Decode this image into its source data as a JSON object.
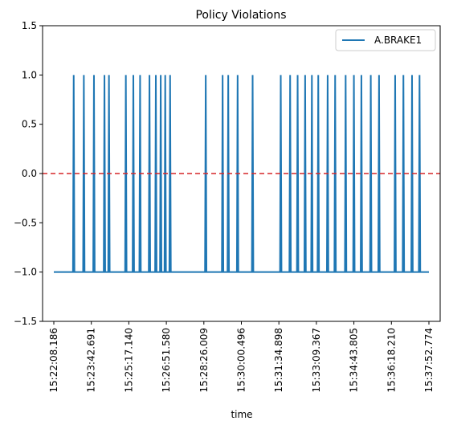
{
  "chart_data": {
    "type": "line",
    "title": "Policy Violations",
    "xlabel": "time",
    "ylabel": "",
    "ylim": [
      -1.5,
      1.5
    ],
    "yticks": [
      -1.5,
      -1.0,
      -0.5,
      0.0,
      0.5,
      1.0,
      1.5
    ],
    "ytick_labels": [
      "−1.5",
      "−1.0",
      "−0.5",
      "0.0",
      "0.5",
      "1.0",
      "1.5"
    ],
    "xtick_labels": [
      "15:22:08.186",
      "15:23:42.691",
      "15:25:17.140",
      "15:26:51.580",
      "15:28:26.009",
      "15:30:00.496",
      "15:31:34.898",
      "15:33:09.367",
      "15:34:43.805",
      "15:36:18.210",
      "15:37:52.774"
    ],
    "x_range_ticks": [
      -0.3,
      10.3
    ],
    "series": [
      {
        "name": "A.BRAKE1",
        "color": "#1f77b4",
        "baseline": -1.0,
        "spike_value": 1.0,
        "spike_positions_tick_units": [
          0.53,
          0.8,
          1.07,
          1.35,
          1.47,
          1.92,
          2.12,
          2.3,
          2.55,
          2.72,
          2.85,
          2.97,
          3.1,
          4.05,
          4.5,
          4.65,
          4.9,
          5.3,
          6.05,
          6.3,
          6.5,
          6.7,
          6.88,
          7.05,
          7.3,
          7.5,
          7.78,
          8.0,
          8.2,
          8.45,
          8.67,
          9.1,
          9.32,
          9.55,
          9.75
        ],
        "x_start_tick_units": 0.0,
        "x_end_tick_units": 10.0
      }
    ],
    "reference_line": {
      "y": 0.0,
      "style": "dashed",
      "color": "#d62728"
    },
    "legend_position": "upper-right",
    "grid": false
  }
}
